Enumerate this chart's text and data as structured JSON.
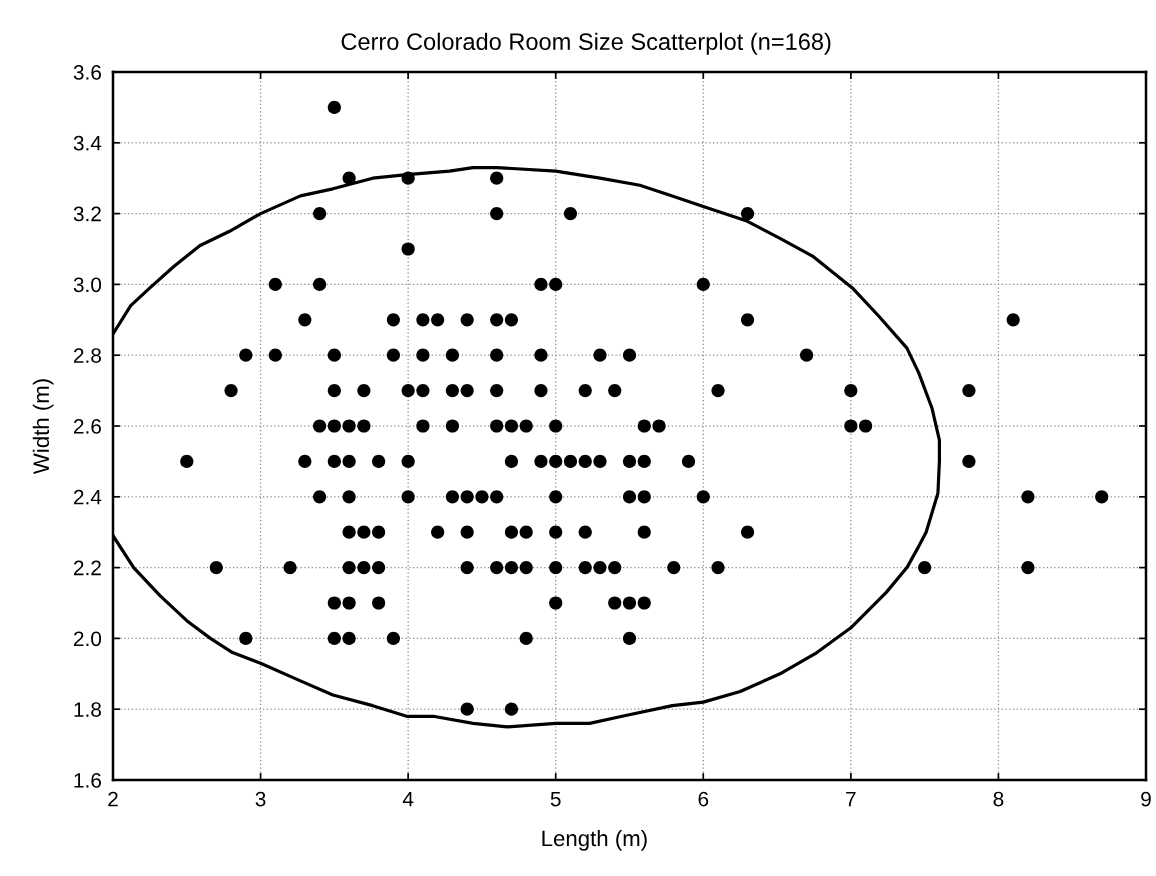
{
  "chart_data": {
    "type": "scatter",
    "title": "Cerro Colorado Room Size Scatterplot (n=168)",
    "xlabel": "Length (m)",
    "ylabel": "Width (m)",
    "xlim": [
      2,
      9
    ],
    "ylim": [
      1.6,
      3.6
    ],
    "xticks": [
      2,
      3,
      4,
      5,
      6,
      7,
      8,
      9
    ],
    "yticks": [
      1.6,
      1.8,
      {
        "value": 2.0,
        "label": "2.0"
      },
      2.2,
      2.4,
      2.6,
      2.8,
      {
        "value": 3.0,
        "label": "3.0"
      },
      3.2,
      3.4,
      3.6
    ],
    "grid": true,
    "series": [
      {
        "color": "#000000",
        "marker": "circle",
        "x": [
          3.5,
          3.6,
          4.0,
          4.6,
          3.4,
          4.6,
          5.1,
          6.3,
          4.0,
          3.1,
          3.4,
          4.9,
          5.0,
          6.0,
          3.3,
          3.9,
          4.1,
          4.2,
          4.4,
          4.6,
          4.7,
          6.3,
          8.1,
          2.9,
          3.1,
          3.5,
          3.9,
          4.1,
          4.3,
          4.6,
          4.9,
          5.3,
          5.5,
          6.7,
          2.8,
          3.5,
          3.7,
          4.0,
          4.1,
          4.3,
          4.4,
          4.6,
          4.9,
          5.2,
          5.4,
          6.1,
          7.0,
          7.8,
          3.4,
          3.5,
          3.6,
          3.7,
          4.1,
          4.3,
          4.6,
          4.7,
          4.8,
          5.0,
          5.6,
          5.7,
          7.0,
          7.1,
          2.5,
          3.3,
          3.5,
          3.6,
          3.8,
          4.0,
          4.7,
          4.9,
          5.0,
          5.1,
          5.2,
          5.3,
          5.5,
          5.6,
          5.9,
          7.8,
          3.4,
          3.6,
          4.0,
          4.3,
          4.4,
          4.5,
          4.6,
          5.0,
          5.5,
          5.6,
          6.0,
          8.2,
          8.7,
          3.6,
          3.7,
          3.8,
          4.2,
          4.4,
          4.7,
          4.8,
          5.0,
          5.2,
          5.6,
          6.3,
          2.7,
          3.2,
          3.6,
          3.7,
          3.8,
          4.4,
          4.6,
          4.7,
          4.8,
          5.0,
          5.2,
          5.3,
          5.4,
          5.8,
          6.1,
          7.5,
          8.2,
          3.5,
          3.6,
          3.8,
          5.0,
          5.4,
          5.5,
          5.6,
          2.9,
          3.5,
          3.6,
          3.9,
          4.8,
          5.5,
          4.4,
          4.7
        ],
        "values": [
          3.5,
          3.3,
          3.3,
          3.3,
          3.2,
          3.2,
          3.2,
          3.2,
          3.1,
          3.0,
          3.0,
          3.0,
          3.0,
          3.0,
          2.9,
          2.9,
          2.9,
          2.9,
          2.9,
          2.9,
          2.9,
          2.9,
          2.9,
          2.8,
          2.8,
          2.8,
          2.8,
          2.8,
          2.8,
          2.8,
          2.8,
          2.8,
          2.8,
          2.8,
          2.7,
          2.7,
          2.7,
          2.7,
          2.7,
          2.7,
          2.7,
          2.7,
          2.7,
          2.7,
          2.7,
          2.7,
          2.7,
          2.7,
          2.6,
          2.6,
          2.6,
          2.6,
          2.6,
          2.6,
          2.6,
          2.6,
          2.6,
          2.6,
          2.6,
          2.6,
          2.6,
          2.6,
          2.5,
          2.5,
          2.5,
          2.5,
          2.5,
          2.5,
          2.5,
          2.5,
          2.5,
          2.5,
          2.5,
          2.5,
          2.5,
          2.5,
          2.5,
          2.5,
          2.4,
          2.4,
          2.4,
          2.4,
          2.4,
          2.4,
          2.4,
          2.4,
          2.4,
          2.4,
          2.4,
          2.4,
          2.4,
          2.3,
          2.3,
          2.3,
          2.3,
          2.3,
          2.3,
          2.3,
          2.3,
          2.3,
          2.3,
          2.3,
          2.2,
          2.2,
          2.2,
          2.2,
          2.2,
          2.2,
          2.2,
          2.2,
          2.2,
          2.2,
          2.2,
          2.2,
          2.2,
          2.2,
          2.2,
          2.2,
          2.2,
          2.1,
          2.1,
          2.1,
          2.1,
          2.1,
          2.1,
          2.1,
          2.0,
          2.0,
          2.0,
          2.0,
          2.0,
          2.0,
          1.8,
          1.8
        ]
      },
      {
        "type": "line",
        "color": "#000000",
        "x": [
          2.0,
          2.12,
          2.25,
          2.41,
          2.59,
          2.79,
          3.0,
          3.27,
          3.49,
          3.76,
          3.99,
          4.28,
          4.44,
          4.6,
          5.0,
          5.3,
          5.57,
          5.79,
          6.0,
          6.29,
          6.52,
          6.74,
          7.01,
          7.19,
          7.38,
          7.46,
          7.55,
          7.6,
          7.6,
          7.59,
          7.51,
          7.46,
          7.38,
          7.24,
          7.0,
          6.77,
          6.52,
          6.25,
          6.0,
          5.79,
          5.45,
          5.23,
          5.0,
          4.67,
          4.44,
          4.17,
          3.99,
          3.76,
          3.49,
          3.27,
          3.0,
          2.81,
          2.66,
          2.5,
          2.32,
          2.14,
          2.0
        ],
        "values": [
          2.86,
          2.94,
          2.99,
          3.05,
          3.11,
          3.15,
          3.2,
          3.25,
          3.27,
          3.3,
          3.31,
          3.32,
          3.33,
          3.33,
          3.32,
          3.3,
          3.28,
          3.25,
          3.22,
          3.18,
          3.13,
          3.08,
          2.99,
          2.91,
          2.82,
          2.75,
          2.65,
          2.56,
          2.5,
          2.41,
          2.3,
          2.26,
          2.2,
          2.13,
          2.03,
          1.96,
          1.9,
          1.85,
          1.82,
          1.81,
          1.78,
          1.76,
          1.76,
          1.75,
          1.76,
          1.78,
          1.78,
          1.81,
          1.84,
          1.88,
          1.93,
          1.96,
          2.0,
          2.05,
          2.12,
          2.2,
          2.29
        ]
      }
    ]
  }
}
